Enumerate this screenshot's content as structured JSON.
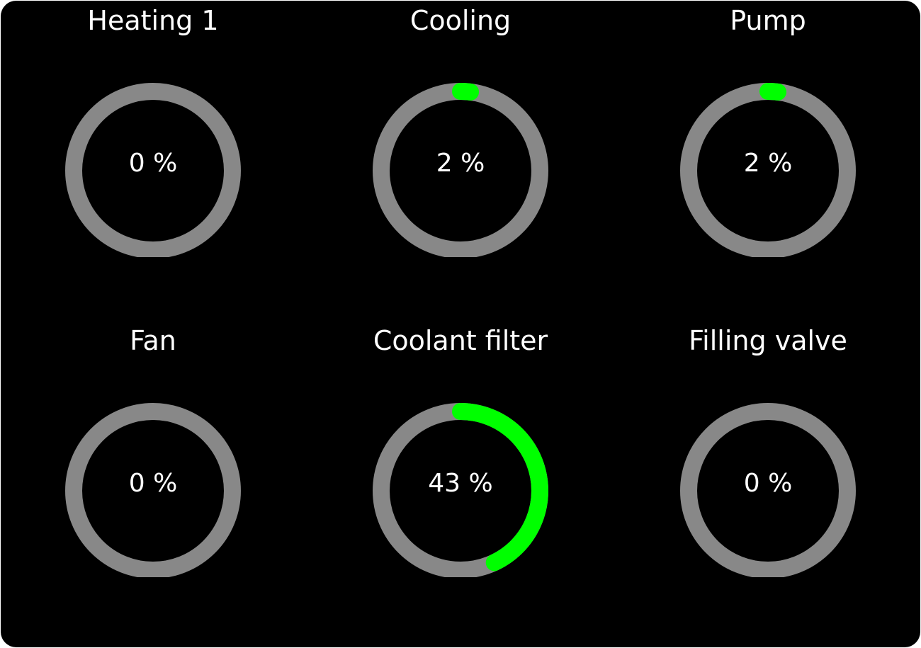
{
  "colors": {
    "track": "#888888",
    "fill": "#00ff00",
    "background": "#000000",
    "text": "#ffffff"
  },
  "gauges": [
    {
      "title": "Heating 1",
      "value": 0,
      "label": "0 %"
    },
    {
      "title": "Cooling",
      "value": 2,
      "label": "2 %"
    },
    {
      "title": "Pump",
      "value": 2,
      "label": "2 %"
    },
    {
      "title": "Fan",
      "value": 0,
      "label": "0 %"
    },
    {
      "title": "Coolant filter",
      "value": 43,
      "label": "43 %"
    },
    {
      "title": "Filling valve",
      "value": 0,
      "label": "0 %"
    }
  ]
}
